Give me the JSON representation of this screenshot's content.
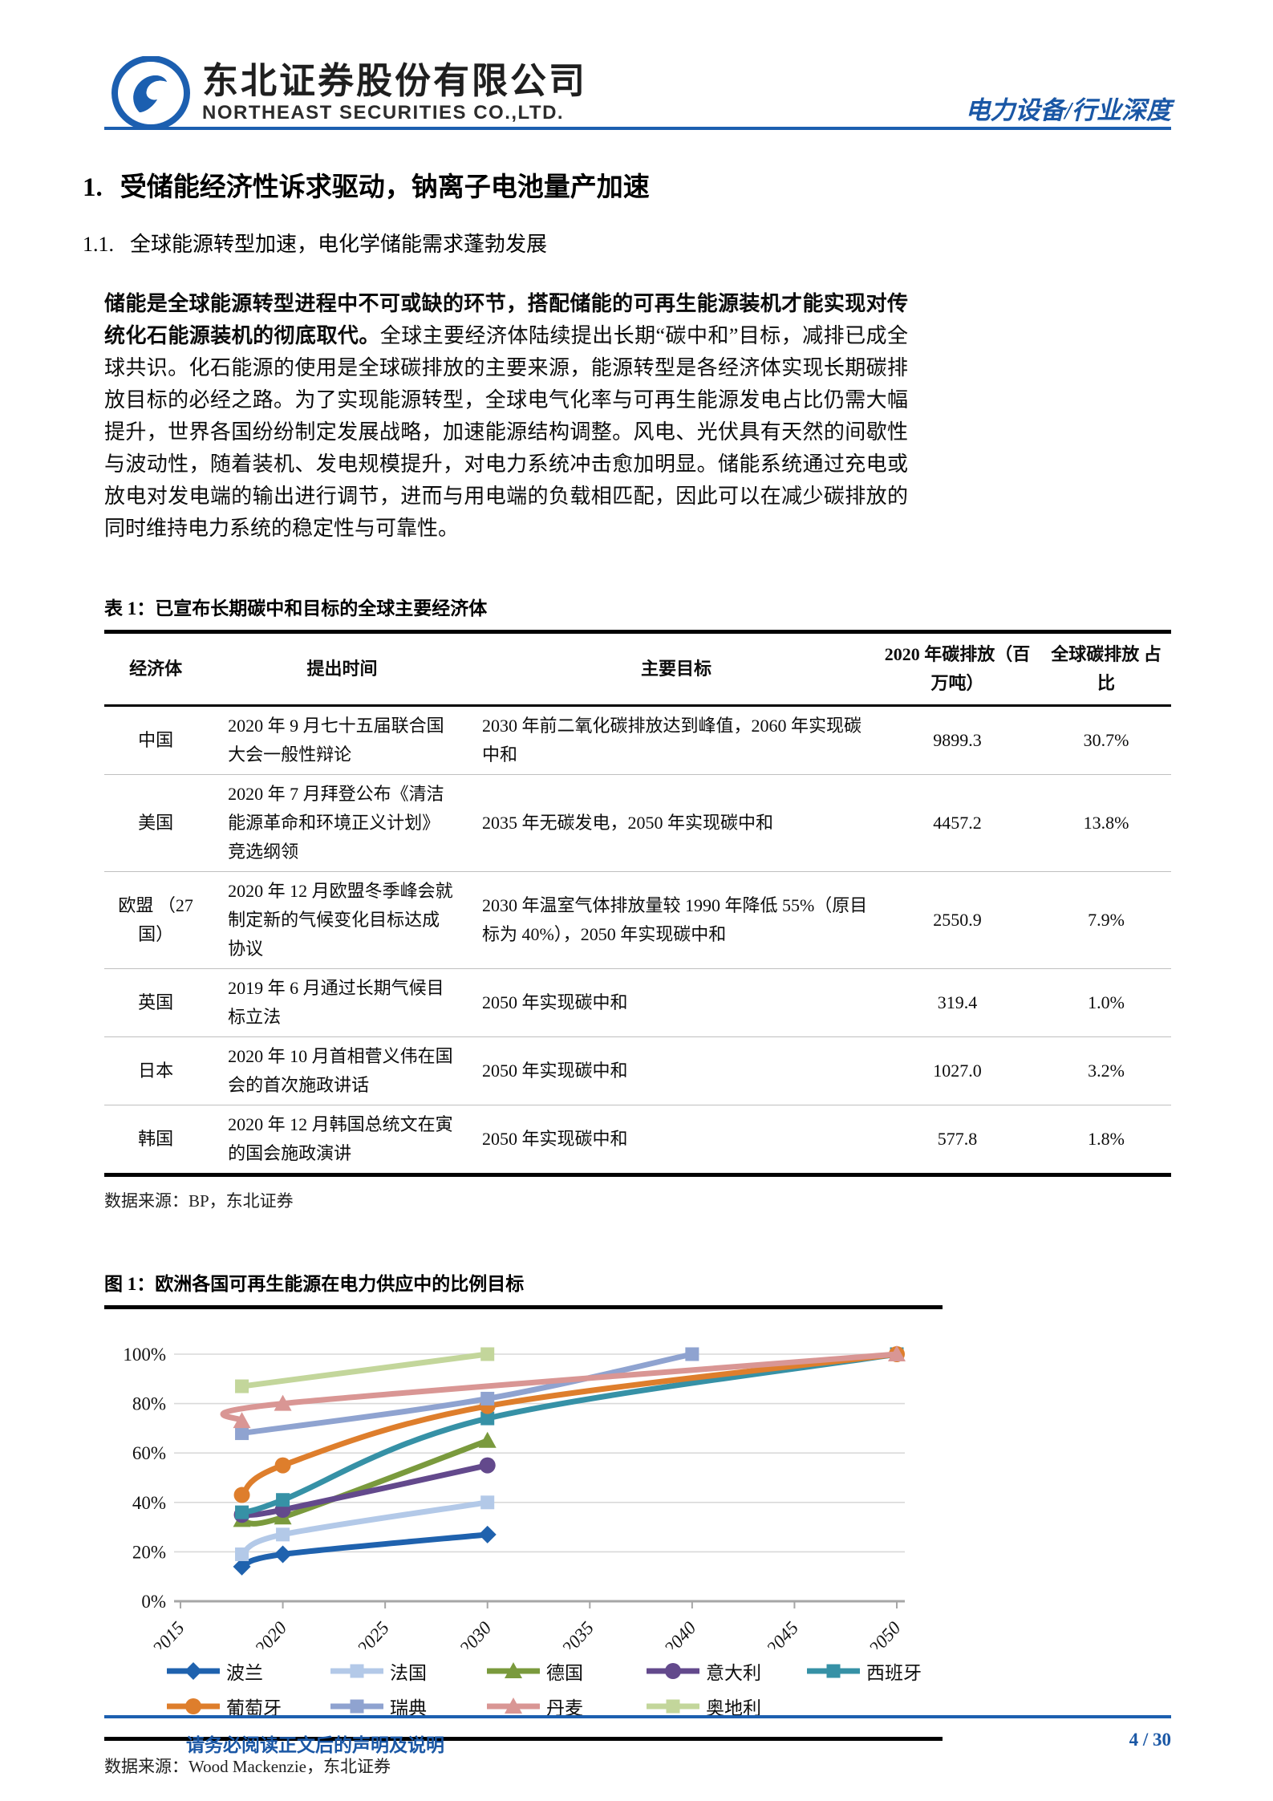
{
  "header": {
    "company_cn": "东北证券股份有限公司",
    "company_en": "NORTHEAST SECURITIES CO.,LTD.",
    "report_tag": "电力设备/行业深度"
  },
  "sections": {
    "h1_no": "1.",
    "h1_title": "受储能经济性诉求驱动，钠离子电池量产加速",
    "h2_no": "1.1.",
    "h2_title": "全球能源转型加速，电化学储能需求蓬勃发展"
  },
  "paragraph": {
    "bold": "储能是全球能源转型进程中不可或缺的环节，搭配储能的可再生能源装机才能实现对传统化石能源装机的彻底取代。",
    "regular": "全球主要经济体陆续提出长期“碳中和”目标，减排已成全球共识。化石能源的使用是全球碳排放的主要来源，能源转型是各经济体实现长期碳排放目标的必经之路。为了实现能源转型，全球电气化率与可再生能源发电占比仍需大幅提升，世界各国纷纷制定发展战略，加速能源结构调整。风电、光伏具有天然的间歇性与波动性，随着装机、发电规模提升，对电力系统冲击愈加明显。储能系统通过充电或放电对发电端的输出进行调节，进而与用电端的负载相匹配，因此可以在减少碳排放的同时维持电力系统的稳定性与可靠性。"
  },
  "table": {
    "title": "表 1：已宣布长期碳中和目标的全球主要经济体",
    "headers": [
      "经济体",
      "提出时间",
      "主要目标",
      "2020 年碳排放（百万吨）",
      "全球碳排放 占比"
    ],
    "rows": [
      {
        "economy": "中国",
        "time": "2020 年 9 月七十五届联合国大会一般性辩论",
        "goal": "2030 年前二氧化碳排放达到峰值，2060 年实现碳中和",
        "emission": "9899.3",
        "share": "30.7%"
      },
      {
        "economy": "美国",
        "time": "2020 年 7 月拜登公布《清洁能源革命和环境正义计划》竞选纲领",
        "goal": "2035 年无碳发电，2050 年实现碳中和",
        "emission": "4457.2",
        "share": "13.8%"
      },
      {
        "economy": "欧盟 （27 国）",
        "time": "2020 年 12 月欧盟冬季峰会就制定新的气候变化目标达成协议",
        "goal": "2030 年温室气体排放量较 1990 年降低 55%（原目标为 40%），2050 年实现碳中和",
        "emission": "2550.9",
        "share": "7.9%"
      },
      {
        "economy": "英国",
        "time": "2019 年 6 月通过长期气候目标立法",
        "goal": "2050 年实现碳中和",
        "emission": "319.4",
        "share": "1.0%"
      },
      {
        "economy": "日本",
        "time": "2020 年 10 月首相菅义伟在国会的首次施政讲话",
        "goal": "2050 年实现碳中和",
        "emission": "1027.0",
        "share": "3.2%"
      },
      {
        "economy": "韩国",
        "time": "2020 年 12 月韩国总统文在寅的国会施政演讲",
        "goal": "2050 年实现碳中和",
        "emission": "577.8",
        "share": "1.8%"
      }
    ],
    "source": "数据来源：BP，东北证券"
  },
  "figure": {
    "title": "图 1：欧洲各国可再生能源在电力供应中的比例目标",
    "source": "数据来源：Wood Mackenzie，东北证券"
  },
  "chart_data": {
    "type": "line",
    "title": "欧洲各国可再生能源在电力供应中的比例目标",
    "xlabel": "",
    "ylabel": "",
    "xlim": [
      2015,
      2050
    ],
    "ylim": [
      0,
      100
    ],
    "x_ticks": [
      2015,
      2020,
      2025,
      2030,
      2035,
      2040,
      2045,
      2050
    ],
    "y_ticks": [
      "0%",
      "20%",
      "40%",
      "60%",
      "80%",
      "100%"
    ],
    "grid": "horizontal",
    "legend_position": "bottom",
    "series": [
      {
        "name": "波兰",
        "color": "#1f62ae",
        "marker": "diamond",
        "points": [
          [
            2018,
            14
          ],
          [
            2020,
            19
          ],
          [
            2030,
            27
          ]
        ]
      },
      {
        "name": "法国",
        "color": "#b3c9e8",
        "marker": "square",
        "points": [
          [
            2018,
            19
          ],
          [
            2020,
            27
          ],
          [
            2030,
            40
          ]
        ]
      },
      {
        "name": "德国",
        "color": "#7a9a3d",
        "marker": "triangle",
        "points": [
          [
            2018,
            33
          ],
          [
            2020,
            34
          ],
          [
            2030,
            65
          ]
        ]
      },
      {
        "name": "意大利",
        "color": "#63498c",
        "marker": "circle",
        "points": [
          [
            2018,
            35
          ],
          [
            2020,
            37
          ],
          [
            2030,
            55
          ]
        ]
      },
      {
        "name": "西班牙",
        "color": "#3691a6",
        "marker": "square",
        "points": [
          [
            2018,
            36
          ],
          [
            2020,
            41
          ],
          [
            2030,
            74
          ],
          [
            2050,
            100
          ]
        ]
      },
      {
        "name": "葡萄牙",
        "color": "#de7e2c",
        "marker": "circle",
        "points": [
          [
            2018,
            43
          ],
          [
            2020,
            55
          ],
          [
            2030,
            79
          ],
          [
            2050,
            100
          ]
        ]
      },
      {
        "name": "瑞典",
        "color": "#8fa3d0",
        "marker": "square",
        "points": [
          [
            2018,
            68
          ],
          [
            2030,
            82
          ],
          [
            2040,
            100
          ]
        ]
      },
      {
        "name": "丹麦",
        "color": "#d99694",
        "marker": "triangle",
        "points": [
          [
            2018,
            73
          ],
          [
            2020,
            80
          ],
          [
            2050,
            100
          ]
        ]
      },
      {
        "name": "奥地利",
        "color": "#c3d69b",
        "marker": "square",
        "points": [
          [
            2018,
            87
          ],
          [
            2030,
            100
          ]
        ]
      }
    ],
    "legend_rows": [
      [
        "波兰",
        "法国",
        "德国",
        "意大利",
        "西班牙"
      ],
      [
        "葡萄牙",
        "瑞典",
        "丹麦",
        "奥地利"
      ]
    ]
  },
  "footer": {
    "disclaimer": "请务必阅读正文后的声明及说明",
    "page": "4 / 30"
  },
  "colors": {
    "accent_blue": "#1a57a5",
    "rule_blue": "#1c5fb0",
    "grid_gray": "#d9d9d9",
    "axis_gray": "#a6a6a6"
  }
}
